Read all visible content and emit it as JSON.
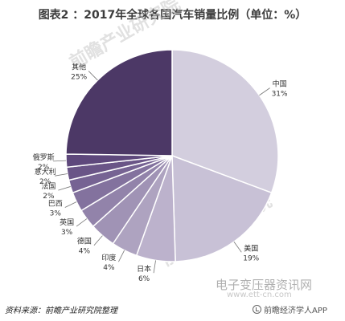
{
  "chart_data": {
    "type": "pie",
    "title": "图表2 ：2017年全球各国汽车销量比例（单位：%）",
    "slices": [
      {
        "label": "中国",
        "value": 31,
        "value_label": "31%",
        "color": "#d3cede"
      },
      {
        "label": "美国",
        "value": 19,
        "value_label": "19%",
        "color": "#c8c1d6"
      },
      {
        "label": "日本",
        "value": 6,
        "value_label": "6%",
        "color": "#bcb2cc"
      },
      {
        "label": "印度",
        "value": 4,
        "value_label": "4%",
        "color": "#aea3c0"
      },
      {
        "label": "德国",
        "value": 4,
        "value_label": "4%",
        "color": "#a093b5"
      },
      {
        "label": "英国",
        "value": 3,
        "value_label": "3%",
        "color": "#9283aa"
      },
      {
        "label": "巴西",
        "value": 3,
        "value_label": "3%",
        "color": "#83729e"
      },
      {
        "label": "法国",
        "value": 2,
        "value_label": "2%",
        "color": "#766393"
      },
      {
        "label": "意大利",
        "value": 2,
        "value_label": "2%",
        "color": "#6a5587"
      },
      {
        "label": "俄罗斯",
        "value": 2,
        "value_label": "2%",
        "color": "#5e487c"
      },
      {
        "label": "其他",
        "value": 25,
        "value_label": "25%",
        "color": "#4c3866"
      }
    ],
    "start": "12 o'clock, clockwise"
  },
  "watermark": "前瞻产业研究院",
  "site_watermark": "电子变压器资讯网",
  "site_url": "www.ett-cn.com",
  "source": "资料来源：前瞻产业研究院整理",
  "app_label": "前瞻经济学人APP"
}
